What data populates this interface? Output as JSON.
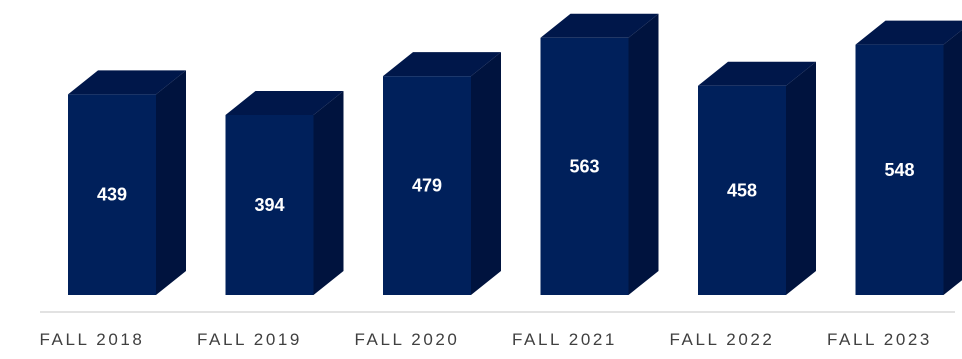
{
  "chart_data": {
    "type": "bar",
    "style": "3d-columns",
    "categories": [
      "FALL 2018",
      "FALL 2019",
      "FALL 2020",
      "FALL 2021",
      "FALL 2022",
      "FALL 2023"
    ],
    "values": [
      439,
      394,
      479,
      563,
      458,
      548
    ],
    "title": "",
    "xlabel": "",
    "ylabel": "",
    "ylim": [
      0,
      580
    ],
    "grid": false,
    "legend": "none",
    "data_labels": true
  },
  "colors": {
    "bar_front": "#00205b",
    "bar_side": "#00133e",
    "bar_top": "#00174a",
    "label_text": "#ffffff",
    "axis_text": "#404040",
    "baseline": "#d9d9d9"
  }
}
